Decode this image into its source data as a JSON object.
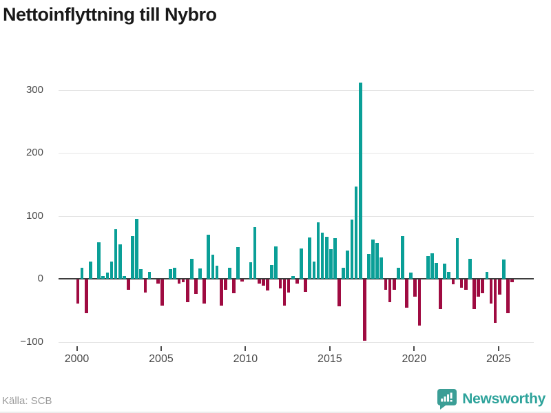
{
  "title": "Nettoinflyttning till Nybro",
  "source": "Källa: SCB",
  "branding": {
    "name": "Newsworthy"
  },
  "colors": {
    "positive": "#0a9f97",
    "negative": "#9f0b41",
    "grid": "#e4e4e4",
    "zero_axis": "#3d3d3d",
    "brand_teal": "#2ea39b",
    "title_text": "#191919",
    "tick_text": "#4a4a4a",
    "source_text": "#9b9b9b"
  },
  "chart_data": {
    "type": "bar",
    "title": "Nettoinflyttning till Nybro",
    "xlabel": "",
    "ylabel": "",
    "frequency": "quarterly",
    "start_period": "2000 Q1",
    "end_period": "2025 Q4",
    "y_ticks": [
      300,
      200,
      100,
      0,
      -100
    ],
    "y_tick_labels": [
      "300",
      "200",
      "100",
      "0",
      "−100"
    ],
    "ylim": [
      -126,
      333
    ],
    "x_ticks_years": [
      2000,
      2005,
      2010,
      2015,
      2020,
      2025
    ],
    "x_tick_labels": [
      "2000",
      "2005",
      "2010",
      "2015",
      "2020",
      "2025"
    ],
    "grid": "horizontal-only",
    "legend": "none",
    "values": [
      -38,
      17,
      -54,
      27,
      0,
      58,
      4,
      10,
      27,
      79,
      55,
      4,
      -16,
      68,
      95,
      15,
      -21,
      11,
      0,
      -6,
      -42,
      0,
      15,
      17,
      -6,
      -4,
      -36,
      32,
      -23,
      16,
      -38,
      70,
      38,
      21,
      -42,
      -16,
      17,
      -22,
      50,
      -3,
      0,
      26,
      82,
      -7,
      -10,
      -17,
      22,
      51,
      -14,
      -42,
      -21,
      4,
      -7,
      48,
      -20,
      66,
      27,
      90,
      73,
      67,
      47,
      65,
      -43,
      17,
      45,
      94,
      147,
      311,
      -97,
      39,
      62,
      57,
      34,
      -16,
      -36,
      -16,
      18,
      68,
      -45,
      10,
      -27,
      -73,
      0,
      36,
      41,
      25,
      -47,
      24,
      11,
      -8,
      64,
      -13,
      -16,
      32,
      -47,
      -27,
      -22,
      11,
      -38,
      -69,
      -24,
      31,
      -53,
      -4
    ]
  }
}
